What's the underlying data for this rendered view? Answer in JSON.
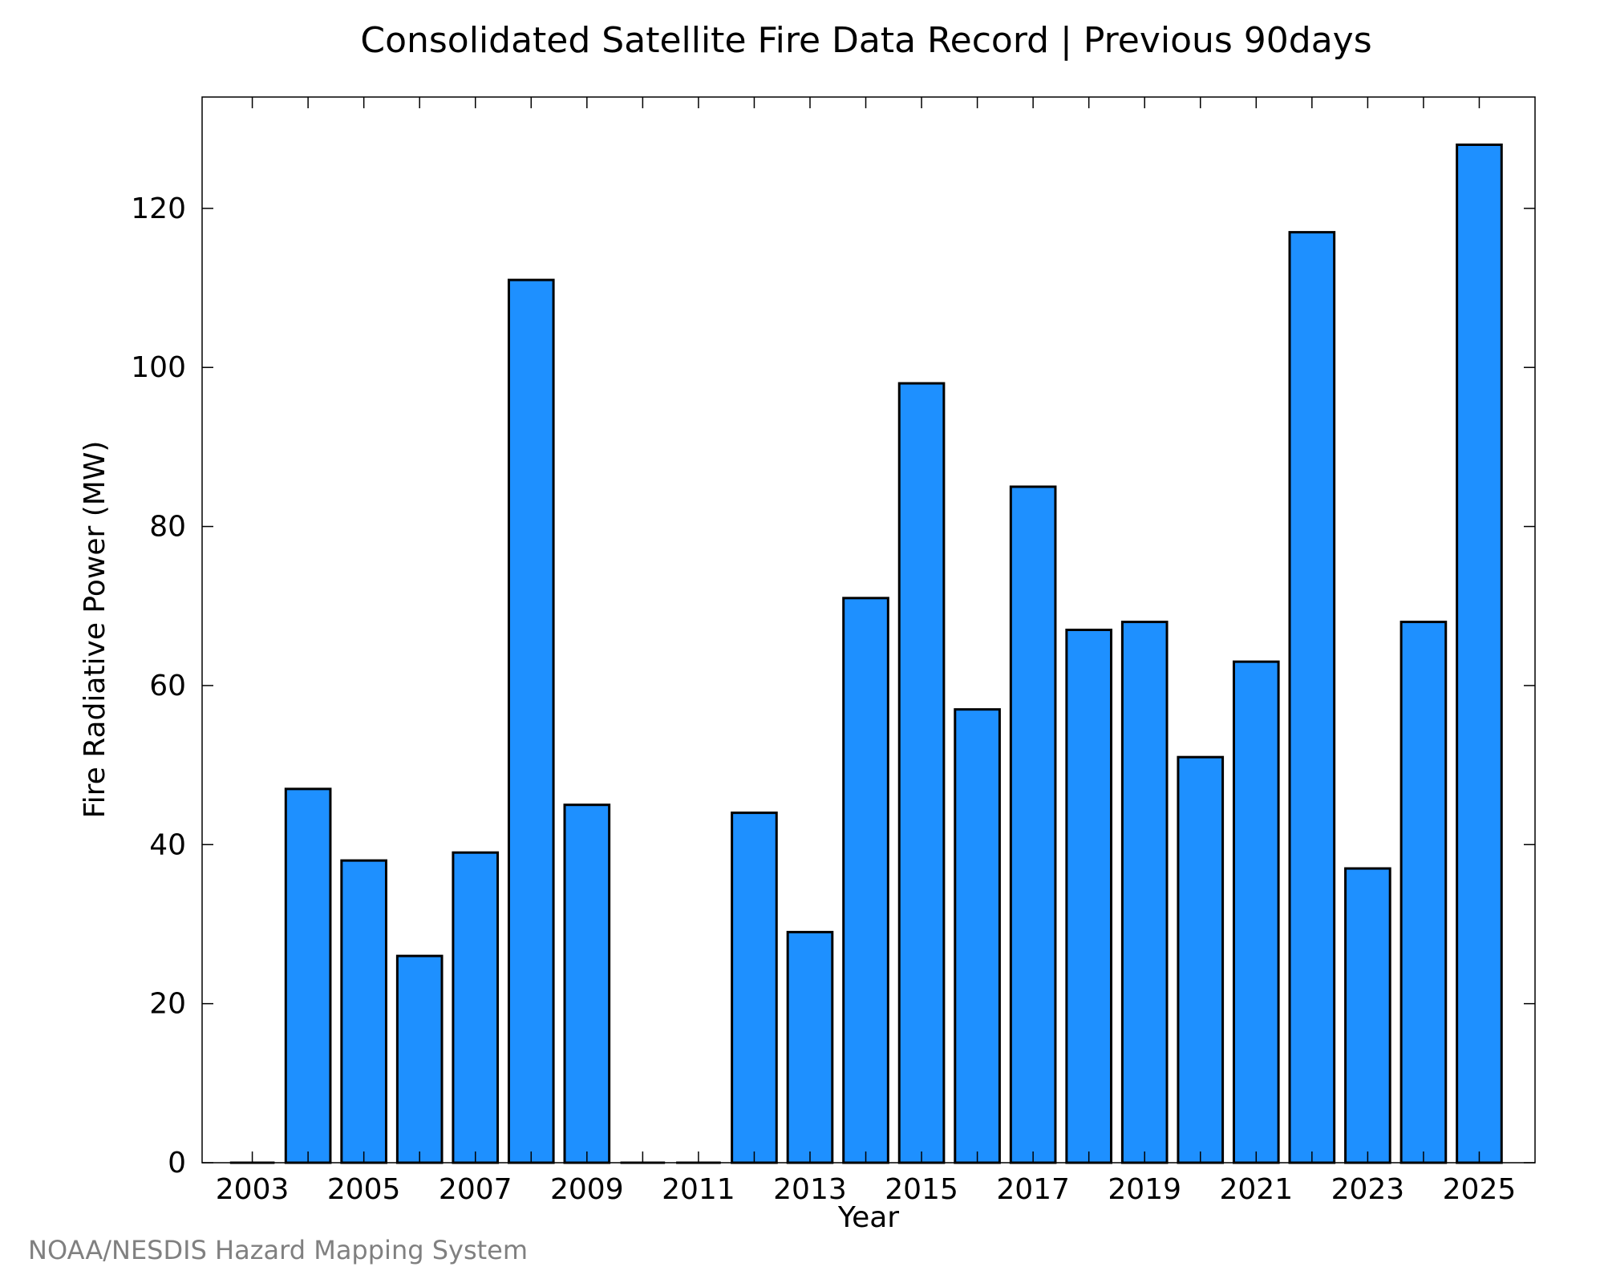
{
  "chart_data": {
    "type": "bar",
    "title": "Consolidated Satellite Fire Data Record | Previous 90days",
    "xlabel": "Year",
    "ylabel": "Fire Radiative Power (MW)",
    "categories": [
      "2003",
      "2004",
      "2005",
      "2006",
      "2007",
      "2008",
      "2009",
      "2010",
      "2011",
      "2012",
      "2013",
      "2014",
      "2015",
      "2016",
      "2017",
      "2018",
      "2019",
      "2020",
      "2021",
      "2022",
      "2023",
      "2024",
      "2025"
    ],
    "values": [
      0,
      47,
      38,
      26,
      39,
      111,
      45,
      0,
      0,
      44,
      29,
      71,
      98,
      57,
      85,
      67,
      68,
      51,
      63,
      117,
      37,
      68,
      128
    ],
    "ylim": [
      0,
      134
    ],
    "xlim": [
      2002.1,
      2026
    ],
    "yticks": [
      0,
      20,
      40,
      60,
      80,
      100,
      120
    ],
    "xtick_labels": [
      "2003",
      "2005",
      "2007",
      "2009",
      "2011",
      "2013",
      "2015",
      "2017",
      "2019",
      "2021",
      "2023",
      "2025"
    ],
    "xtick_minor": [
      2003,
      2004,
      2005,
      2006,
      2007,
      2008,
      2009,
      2010,
      2011,
      2012,
      2013,
      2014,
      2015,
      2016,
      2017,
      2018,
      2019,
      2020,
      2021,
      2022,
      2023,
      2024,
      2025
    ],
    "grid": false,
    "bar_color": "#1e90ff",
    "bar_edge_color": "#000000"
  },
  "credit": "NOAA/NESDIS Hazard Mapping System"
}
